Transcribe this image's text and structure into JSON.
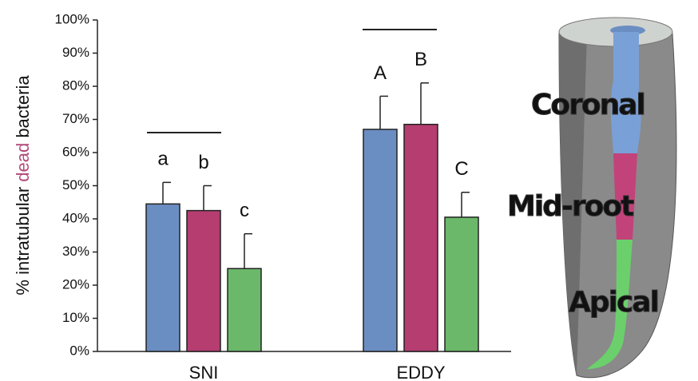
{
  "chart_data": {
    "type": "bar",
    "y_label": {
      "prefix": "% intratubular ",
      "highlight": "dead",
      "suffix": " bacteria",
      "highlight_color": "#b04a7a"
    },
    "categories": [
      "SNI",
      "EDDY"
    ],
    "series": [
      {
        "name": "Coronal",
        "color": "#6b8ec2",
        "values": [
          44.5,
          67
        ],
        "errors": [
          6.5,
          10
        ],
        "letters": [
          "a",
          "A"
        ]
      },
      {
        "name": "Mid-root",
        "color": "#b53d70",
        "values": [
          42.5,
          68.5
        ],
        "errors": [
          7.5,
          12.5
        ],
        "letters": [
          "b",
          "B"
        ]
      },
      {
        "name": "Apical",
        "color": "#6bb86b",
        "values": [
          25,
          40.5
        ],
        "errors": [
          10.5,
          7.5
        ],
        "letters": [
          "c",
          "C"
        ]
      }
    ],
    "ylim": [
      0,
      100
    ],
    "yticks": [
      {
        "value": 0,
        "label": "0%"
      },
      {
        "value": 10,
        "label": "10%"
      },
      {
        "value": 20,
        "label": "20%"
      },
      {
        "value": 30,
        "label": "30%"
      },
      {
        "value": 40,
        "label": "40%"
      },
      {
        "value": 50,
        "label": "50%"
      },
      {
        "value": 60,
        "label": "60%"
      },
      {
        "value": 70,
        "label": "70%"
      },
      {
        "value": 80,
        "label": "80%"
      },
      {
        "value": 90,
        "label": "90%"
      },
      {
        "value": 100,
        "label": "100%"
      }
    ],
    "grid": false
  }
}
